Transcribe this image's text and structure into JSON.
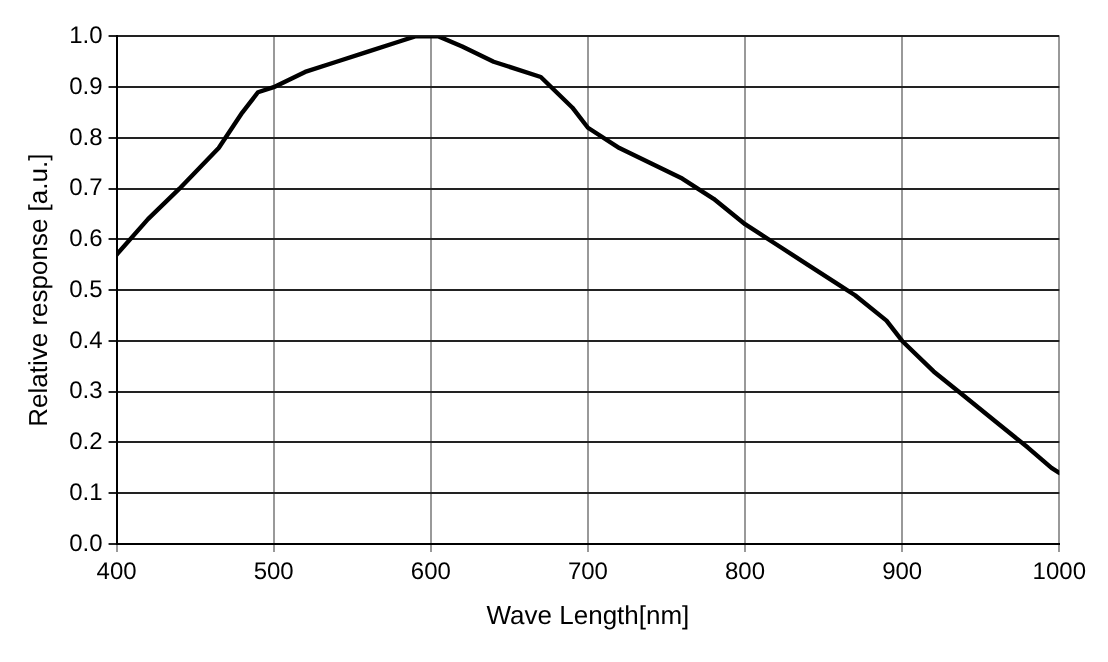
{
  "chart_data": {
    "type": "line",
    "xlabel": "Wave Length[nm]",
    "ylabel": "Relative response [a.u.]",
    "xlim": [
      400,
      1000
    ],
    "xticks": [
      400,
      500,
      600,
      700,
      800,
      900,
      1000
    ],
    "ylim": [
      0,
      1
    ],
    "yticks": [
      {
        "value": 0,
        "label": "0.0"
      },
      {
        "value": 0.1,
        "label": "0.1"
      },
      {
        "value": 0.2,
        "label": "0.2"
      },
      {
        "value": 0.3,
        "label": "0.3"
      },
      {
        "value": 0.4,
        "label": "0.4"
      },
      {
        "value": 0.5,
        "label": "0.5"
      },
      {
        "value": 0.6,
        "label": "0.6"
      },
      {
        "value": 0.7,
        "label": "0.7"
      },
      {
        "value": 0.8,
        "label": "0.8"
      },
      {
        "value": 0.9,
        "label": "0.9"
      },
      {
        "value": 1,
        "label": "1.0"
      }
    ],
    "grid": true,
    "legend": false,
    "marker": "none",
    "line_style": "solid",
    "x": [
      400,
      420,
      440,
      465,
      480,
      490,
      500,
      520,
      540,
      560,
      580,
      590,
      605,
      620,
      640,
      670,
      690,
      700,
      720,
      740,
      760,
      780,
      800,
      820,
      840,
      860,
      870,
      890,
      900,
      920,
      940,
      960,
      980,
      995,
      1000
    ],
    "series": [
      {
        "color": "#000000",
        "values": [
          0.57,
          0.64,
          0.7,
          0.78,
          0.85,
          0.89,
          0.9,
          0.93,
          0.95,
          0.97,
          0.99,
          1.0,
          1.0,
          0.98,
          0.95,
          0.92,
          0.86,
          0.82,
          0.78,
          0.75,
          0.72,
          0.68,
          0.63,
          0.59,
          0.55,
          0.51,
          0.49,
          0.44,
          0.4,
          0.34,
          0.29,
          0.24,
          0.19,
          0.15,
          0.14
        ]
      }
    ]
  }
}
